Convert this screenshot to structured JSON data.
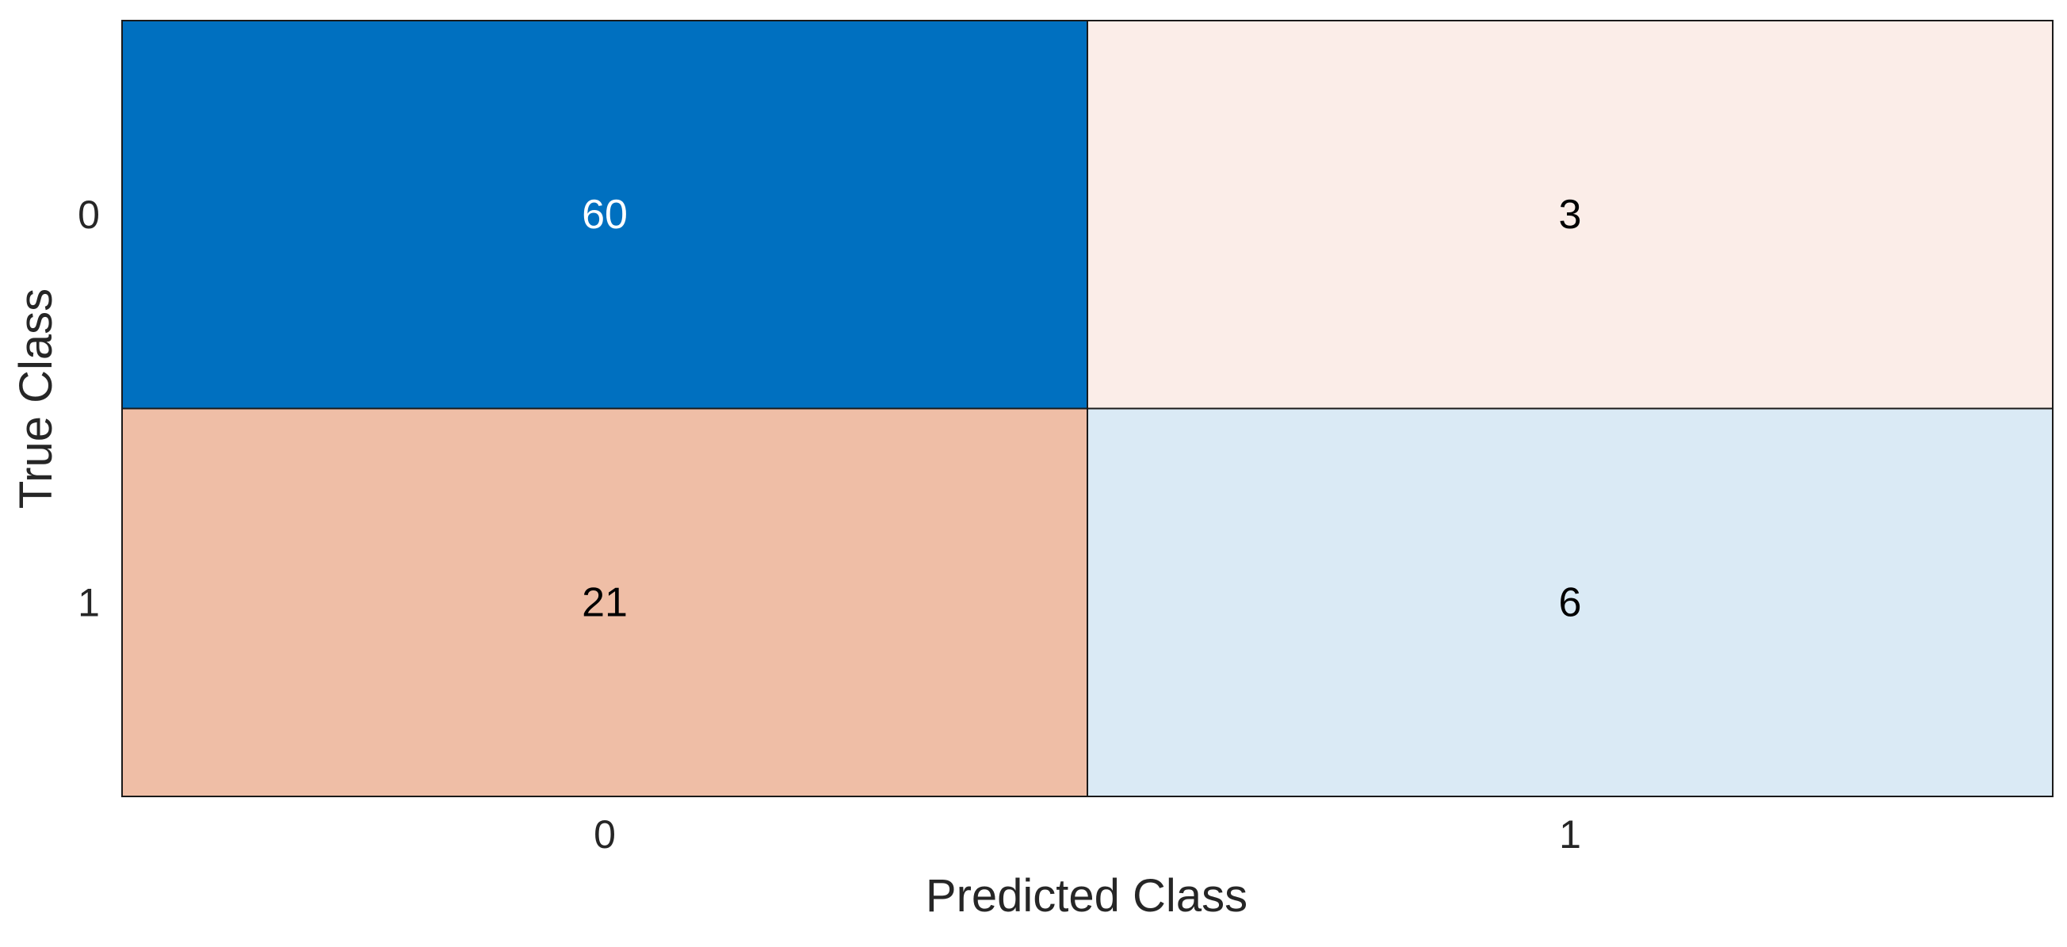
{
  "chart_data": {
    "type": "heatmap",
    "xlabel": "Predicted Class",
    "ylabel": "True Class",
    "x_categories": [
      "0",
      "1"
    ],
    "y_categories": [
      "0",
      "1"
    ],
    "matrix": [
      [
        60,
        3
      ],
      [
        21,
        6
      ]
    ],
    "cell_colors": [
      [
        "#0070c0",
        "#fbede8"
      ],
      [
        "#efbea6",
        "#daeaf5"
      ]
    ],
    "text_colors": [
      [
        "#ffffff",
        "#000000"
      ],
      [
        "#000000",
        "#000000"
      ]
    ],
    "grid": false
  }
}
